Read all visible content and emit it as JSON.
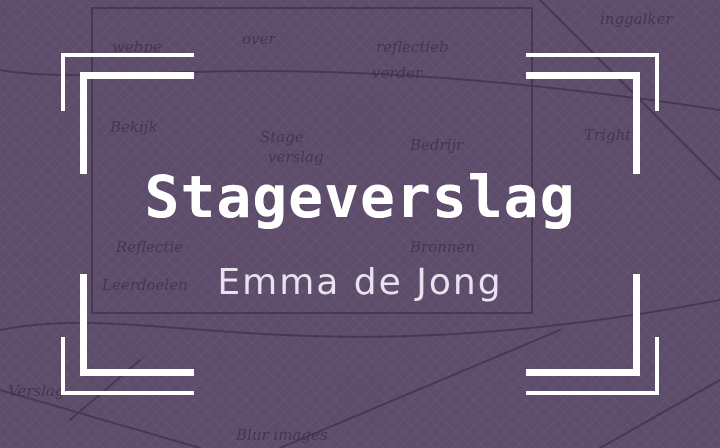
{
  "cover": {
    "title": "Stageverslag",
    "author": "Emma de Jong"
  },
  "background": {
    "sketch_words": [
      "webpe",
      "over",
      "inggalker",
      "reflectieb",
      "verder",
      "Bekijk",
      "Bedrijr",
      "Tright",
      "Stage",
      "verslag",
      "Reflectie",
      "Leerdoelen",
      "Bronnen",
      "Blur images",
      "Verslag"
    ]
  },
  "colors": {
    "background": "#5d4d6b",
    "frame": "#ffffff",
    "title": "#ffffff",
    "subtitle": "#e8e1ee"
  },
  "icons": [
    "corner-bracket-icon"
  ]
}
